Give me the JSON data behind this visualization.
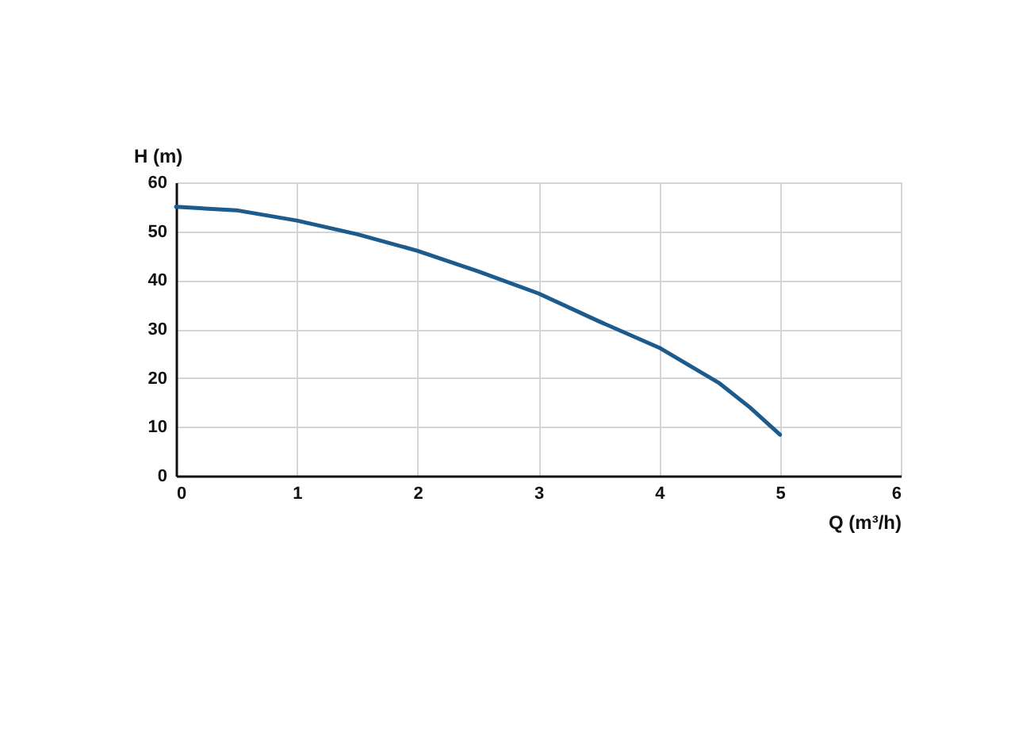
{
  "chart_data": {
    "type": "line",
    "xlabel": "Q (m³/h)",
    "ylabel": "H (m)",
    "x": [
      0,
      0.5,
      1,
      1.5,
      2,
      2.5,
      3,
      3.5,
      4,
      4.5,
      4.75,
      5
    ],
    "series": [
      {
        "color": "#1d5b8c",
        "values": [
          55,
          54.3,
          52.2,
          49.4,
          46,
          41.8,
          37.3,
          31.6,
          26.2,
          18.9,
          14,
          8.4
        ]
      }
    ],
    "xlim": [
      0,
      6
    ],
    "xticks": [
      0,
      1,
      2,
      3,
      4,
      5,
      6
    ],
    "ylim": [
      0,
      60
    ],
    "yticks": [
      0,
      10,
      20,
      30,
      40,
      50,
      60
    ],
    "grid": true
  }
}
